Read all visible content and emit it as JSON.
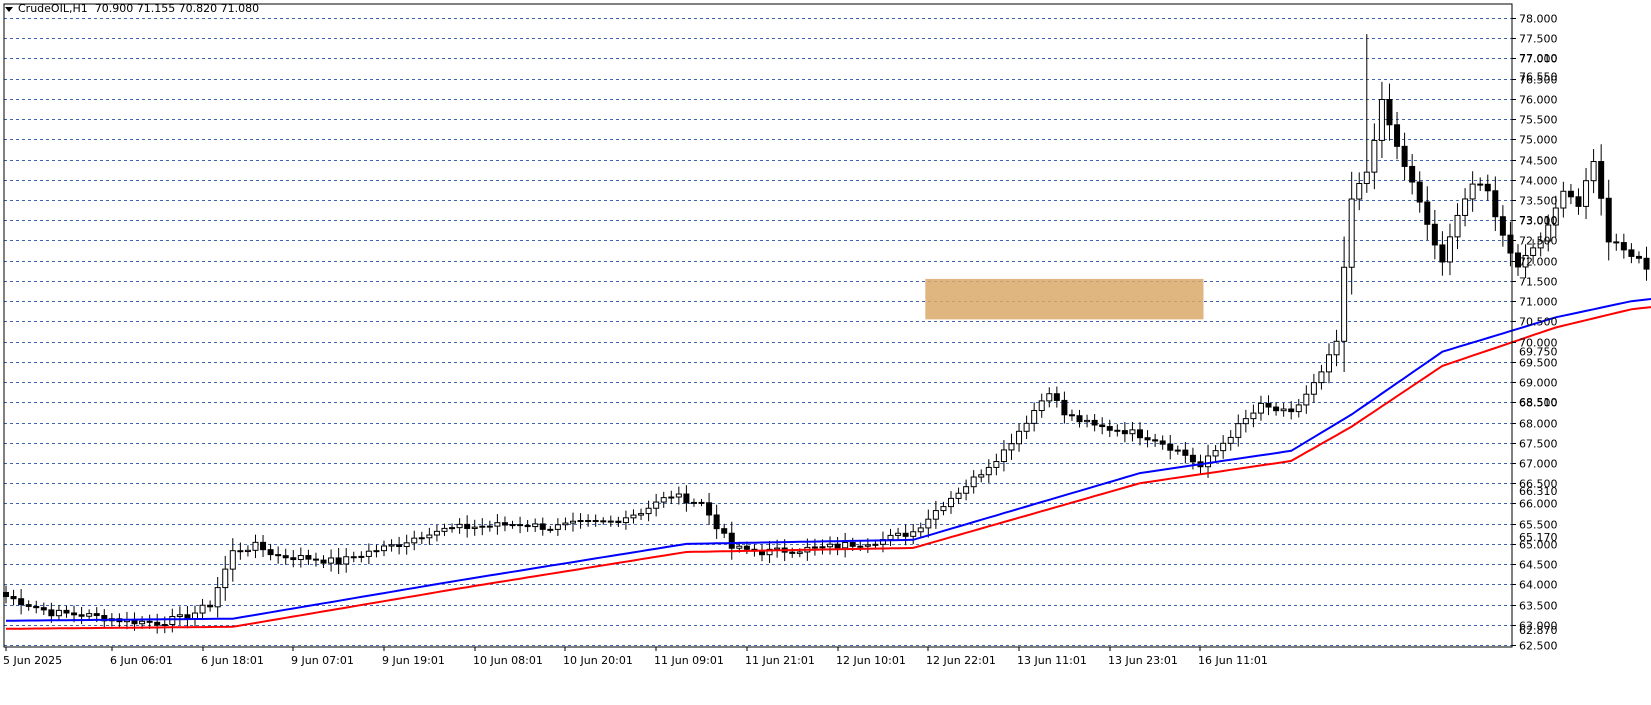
{
  "header": {
    "title": "CrudeOIL,H1  70.900 71.155 70.820 71.080"
  },
  "colors": {
    "background": "#ffffff",
    "grid": "#3c62b0",
    "candle": "#000000",
    "ma_fast": "#0000ff",
    "ma_slow": "#ff0000",
    "zone": "#d9a86a"
  },
  "chart_data": {
    "type": "candlestick",
    "symbol": "CrudeOIL",
    "timeframe": "H1",
    "ohlc_last": {
      "open": 70.9,
      "high": 71.155,
      "low": 70.82,
      "close": 71.08
    },
    "ylim": [
      62.5,
      78.0
    ],
    "y_ticks": [
      "62.500",
      "63.000",
      "63.500",
      "64.000",
      "64.500",
      "65.000",
      "65.500",
      "66.000",
      "66.500",
      "67.000",
      "67.500",
      "68.000",
      "68.500",
      "69.000",
      "69.500",
      "70.000",
      "70.500",
      "71.000",
      "71.500",
      "72.000",
      "72.500",
      "73.000",
      "73.500",
      "74.000",
      "74.500",
      "75.000",
      "75.500",
      "76.000",
      "76.500",
      "77.000",
      "77.500",
      "78.000"
    ],
    "y_ticks_partial": [
      "77.010",
      "76.550",
      "73.010",
      "69.750",
      "68.510",
      "66.310",
      "65.170",
      "62.870"
    ],
    "x_ticks": [
      "5 Jun 2025",
      "6 Jun 06:01",
      "6 Jun 18:01",
      "9 Jun 07:01",
      "9 Jun 19:01",
      "10 Jun 08:01",
      "10 Jun 20:01",
      "11 Jun 09:01",
      "11 Jun 21:01",
      "12 Jun 10:01",
      "12 Jun 22:01",
      "13 Jun 11:01",
      "13 Jun 23:01",
      "16 Jun 11:01"
    ],
    "grid": true,
    "zone": {
      "from_tick": "12 Jun 22:01",
      "to_tick": "16 Jun 11:01",
      "low": 70.55,
      "high": 71.55
    },
    "close_path": [
      [
        0,
        63.7
      ],
      [
        6,
        63.3
      ],
      [
        10,
        63.25
      ],
      [
        16,
        63.1
      ],
      [
        20,
        63.05
      ],
      [
        24,
        63.2
      ],
      [
        27,
        63.5
      ],
      [
        30,
        64.8
      ],
      [
        33,
        64.95
      ],
      [
        36,
        64.7
      ],
      [
        40,
        64.65
      ],
      [
        44,
        64.55
      ],
      [
        48,
        64.8
      ],
      [
        52,
        65.0
      ],
      [
        56,
        65.3
      ],
      [
        60,
        65.4
      ],
      [
        64,
        65.45
      ],
      [
        68,
        65.5
      ],
      [
        72,
        65.4
      ],
      [
        76,
        65.5
      ],
      [
        80,
        65.55
      ],
      [
        84,
        65.8
      ],
      [
        88,
        66.2
      ],
      [
        92,
        66.0
      ],
      [
        96,
        64.9
      ],
      [
        100,
        64.8
      ],
      [
        104,
        64.85
      ],
      [
        108,
        64.9
      ],
      [
        112,
        65.0
      ],
      [
        116,
        65.1
      ],
      [
        120,
        65.3
      ],
      [
        124,
        66.0
      ],
      [
        128,
        66.6
      ],
      [
        132,
        67.3
      ],
      [
        136,
        68.3
      ],
      [
        138,
        68.8
      ],
      [
        140,
        68.2
      ],
      [
        144,
        67.9
      ],
      [
        148,
        67.8
      ],
      [
        152,
        67.6
      ],
      [
        156,
        67.2
      ],
      [
        158,
        66.9
      ],
      [
        160,
        67.3
      ],
      [
        163,
        67.9
      ],
      [
        166,
        68.4
      ],
      [
        170,
        68.2
      ],
      [
        174,
        69.2
      ],
      [
        176,
        70.0
      ],
      [
        178,
        73.5
      ],
      [
        180,
        74.2
      ],
      [
        182,
        75.9
      ],
      [
        184,
        74.8
      ],
      [
        186,
        73.9
      ],
      [
        190,
        71.9
      ],
      [
        192,
        73.2
      ],
      [
        194,
        73.9
      ],
      [
        196,
        73.7
      ],
      [
        198,
        72.6
      ],
      [
        200,
        71.9
      ],
      [
        204,
        72.8
      ],
      [
        206,
        73.8
      ],
      [
        208,
        73.4
      ],
      [
        210,
        74.5
      ],
      [
        212,
        72.5
      ],
      [
        216,
        72.0
      ],
      [
        218,
        71.7
      ],
      [
        222,
        72.0
      ],
      [
        226,
        72.0
      ],
      [
        228,
        70.85
      ],
      [
        230,
        70.95
      ],
      [
        231,
        71.08
      ]
    ],
    "series": [
      {
        "type": "line",
        "values_path": [
          [
            0,
            63.1
          ],
          [
            30,
            63.15
          ],
          [
            60,
            64.1
          ],
          [
            90,
            65.0
          ],
          [
            120,
            65.1
          ],
          [
            150,
            66.75
          ],
          [
            170,
            67.3
          ],
          [
            178,
            68.2
          ],
          [
            190,
            69.75
          ],
          [
            205,
            70.6
          ],
          [
            215,
            71.0
          ],
          [
            225,
            71.2
          ],
          [
            231,
            71.2
          ]
        ]
      },
      {
        "type": "line",
        "values_path": [
          [
            0,
            62.9
          ],
          [
            30,
            62.95
          ],
          [
            60,
            63.9
          ],
          [
            90,
            64.8
          ],
          [
            120,
            64.9
          ],
          [
            150,
            66.5
          ],
          [
            170,
            67.05
          ],
          [
            178,
            67.9
          ],
          [
            190,
            69.4
          ],
          [
            205,
            70.35
          ],
          [
            215,
            70.8
          ],
          [
            225,
            71.0
          ],
          [
            231,
            71.0
          ]
        ]
      }
    ]
  }
}
